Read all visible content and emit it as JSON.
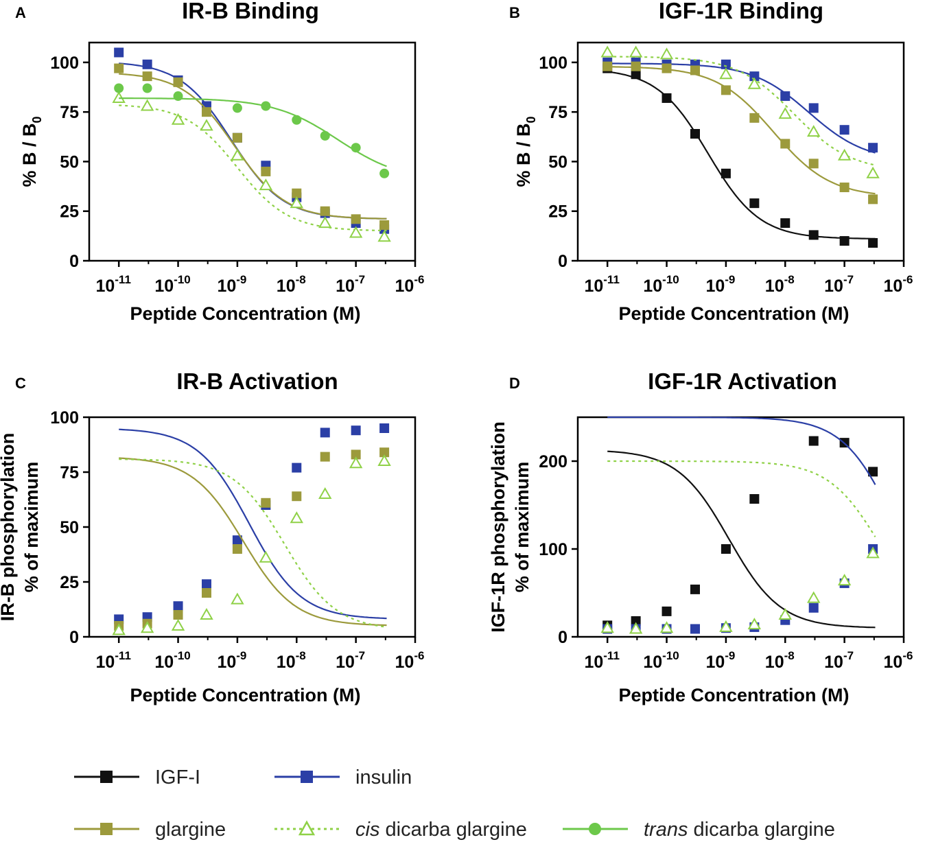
{
  "legend": [
    {
      "name": "IGF-I",
      "prefix": "",
      "suffix": "IGF-I",
      "color": "#111111",
      "marker": "square",
      "dash": false
    },
    {
      "name": "insulin",
      "prefix": "",
      "suffix": "insulin",
      "color": "#2b3fa6",
      "marker": "square",
      "dash": false
    },
    {
      "name": "glargine",
      "prefix": "",
      "suffix": "glargine",
      "color": "#9c9a3c",
      "marker": "square",
      "dash": false
    },
    {
      "name": "cis dicarba glargine",
      "prefix": "cis",
      "suffix": " dicarba glargine",
      "color": "#8fd147",
      "marker": "triangle-open",
      "dash": true
    },
    {
      "name": "trans dicarba glargine",
      "prefix": "trans",
      "suffix": " dicarba glargine",
      "color": "#6cc84a",
      "marker": "circle",
      "dash": false
    }
  ],
  "colors": {
    "IGF-I": "#111111",
    "insulin": "#2b3fa6",
    "glargine": "#9c9a3c",
    "cis dicarba glargine": "#8fd147",
    "trans dicarba glargine": "#6cc84a"
  },
  "chart_data": [
    {
      "panel": "A",
      "type": "scatter",
      "title": "IR-B Binding",
      "xlabel": "Peptide Concentration (M)",
      "ylabel": "% B / B",
      "ylabel_sub": "0",
      "xscale": "log",
      "xlim_exp": [
        -11.5,
        -6
      ],
      "x_tick_exponents": [
        "-11",
        "-10",
        "-9",
        "-8",
        "-7",
        "-6"
      ],
      "ylim": [
        0,
        110
      ],
      "y_ticks": [
        0,
        25,
        50,
        75,
        100
      ],
      "series": [
        {
          "name": "insulin",
          "x_exp": [
            -11,
            -10.52,
            -10,
            -9.52,
            -9,
            -8.52,
            -8,
            -7.52,
            -7,
            -6.52
          ],
          "values": [
            105,
            99,
            91,
            78,
            62,
            48,
            32,
            24,
            19,
            16
          ],
          "fit": {
            "bottom": 21,
            "top": 100.5,
            "logEC50": -9.1,
            "hill": 1.0
          }
        },
        {
          "name": "glargine",
          "x_exp": [
            -11,
            -10.52,
            -10,
            -9.52,
            -9,
            -8.52,
            -8,
            -7.52,
            -7,
            -6.52
          ],
          "values": [
            97,
            93,
            90,
            75,
            62,
            45,
            34,
            25,
            21,
            18
          ],
          "fit": {
            "bottom": 21,
            "top": 95,
            "logEC50": -9.05,
            "hill": 1.0
          }
        },
        {
          "name": "cis dicarba glargine",
          "x_exp": [
            -11,
            -10.52,
            -10,
            -9.52,
            -9,
            -8.52,
            -8,
            -7.52,
            -7,
            -6.52
          ],
          "values": [
            82,
            78,
            71,
            68,
            53,
            38,
            29,
            19,
            14,
            12
          ],
          "fit": {
            "bottom": 15,
            "top": 79,
            "logEC50": -9.0,
            "hill": 1.0
          }
        },
        {
          "name": "trans dicarba glargine",
          "x_exp": [
            -11,
            -10.52,
            -10,
            -9,
            -8.52,
            -8,
            -7.52,
            -7,
            -6.52
          ],
          "values": [
            87,
            87,
            83,
            77,
            78,
            71,
            63,
            57,
            44
          ],
          "fit": {
            "bottom": 40,
            "top": 82,
            "logEC50": -7.3,
            "hill": 0.8
          }
        }
      ]
    },
    {
      "panel": "B",
      "type": "scatter",
      "title": "IGF-1R Binding",
      "xlabel": "Peptide Concentration (M)",
      "ylabel": "% B / B",
      "ylabel_sub": "0",
      "xscale": "log",
      "xlim_exp": [
        -11.5,
        -6
      ],
      "x_tick_exponents": [
        "-11",
        "-10",
        "-9",
        "-8",
        "-7",
        "-6"
      ],
      "ylim": [
        0,
        110
      ],
      "y_ticks": [
        0,
        25,
        50,
        75,
        100
      ],
      "series": [
        {
          "name": "IGF-I",
          "x_exp": [
            -11,
            -10.52,
            -10,
            -9.52,
            -9,
            -8.52,
            -8,
            -7.52,
            -7,
            -6.52
          ],
          "values": [
            97,
            94,
            82,
            64,
            44,
            29,
            19,
            13,
            10,
            9
          ],
          "fit": {
            "bottom": 11,
            "top": 97,
            "logEC50": -9.3,
            "hill": 1.0
          }
        },
        {
          "name": "insulin",
          "x_exp": [
            -11,
            -10.52,
            -10,
            -9.52,
            -9,
            -8.52,
            -8,
            -7.52,
            -7,
            -6.52
          ],
          "values": [
            100,
            100,
            99,
            99,
            99,
            93,
            83,
            77,
            66,
            57
          ],
          "fit": {
            "bottom": 50,
            "top": 99.5,
            "logEC50": -7.6,
            "hill": 0.9
          }
        },
        {
          "name": "glargine",
          "x_exp": [
            -11,
            -10.52,
            -10,
            -9.52,
            -9,
            -8.52,
            -8,
            -7.52,
            -7,
            -6.52
          ],
          "values": [
            98,
            98,
            97,
            96,
            86,
            72,
            59,
            49,
            37,
            31
          ],
          "fit": {
            "bottom": 32,
            "top": 98,
            "logEC50": -8.2,
            "hill": 0.9
          }
        },
        {
          "name": "cis dicarba glargine",
          "x_exp": [
            -11,
            -10.52,
            -10,
            -9,
            -8.52,
            -8,
            -7.52,
            -7,
            -6.52
          ],
          "values": [
            105,
            105,
            104,
            94,
            89,
            74,
            65,
            53,
            44
          ],
          "fit": {
            "bottom": 45,
            "top": 103,
            "logEC50": -7.85,
            "hill": 0.9
          }
        }
      ]
    },
    {
      "panel": "C",
      "type": "scatter",
      "title": "IR-B Activation",
      "xlabel": "Peptide Concentration (M)",
      "ylabel": "IR-B phosphorylation",
      "ylabel2": "% of maximum",
      "xscale": "log",
      "xlim_exp": [
        -11.5,
        -6
      ],
      "x_tick_exponents": [
        "-11",
        "-10",
        "-9",
        "-8",
        "-7",
        "-6"
      ],
      "ylim": [
        0,
        100
      ],
      "y_ticks": [
        0,
        25,
        50,
        75,
        100
      ],
      "series": [
        {
          "name": "insulin",
          "x_exp": [
            -11,
            -10.52,
            -10,
            -9.52,
            -9,
            -8.52,
            -8,
            -7.52,
            -7,
            -6.52
          ],
          "values": [
            8,
            9,
            14,
            24,
            44,
            60,
            77,
            93,
            94,
            95
          ],
          "fit": {
            "bottom": 8,
            "top": 95,
            "logEC50": -8.8,
            "hill": 1.0
          }
        },
        {
          "name": "glargine",
          "x_exp": [
            -11,
            -10.52,
            -10,
            -9.52,
            -9,
            -8.52,
            -8,
            -7.52,
            -7,
            -6.52
          ],
          "values": [
            5,
            6,
            10,
            20,
            40,
            61,
            64,
            82,
            83,
            84
          ],
          "fit": {
            "bottom": 5,
            "top": 82,
            "logEC50": -8.9,
            "hill": 1.0
          }
        },
        {
          "name": "cis dicarba glargine",
          "x_exp": [
            -11,
            -10.52,
            -10,
            -9.52,
            -9,
            -8.52,
            -8,
            -7.52,
            -7,
            -6.52
          ],
          "values": [
            3,
            4,
            5,
            10,
            17,
            36,
            54,
            65,
            79,
            80
          ],
          "fit": {
            "bottom": 3,
            "top": 81,
            "logEC50": -8.2,
            "hill": 1.0
          }
        }
      ]
    },
    {
      "panel": "D",
      "type": "scatter",
      "title": "IGF-1R Activation",
      "xlabel": "Peptide Concentration (M)",
      "ylabel": "IGF-1R phosphorylation",
      "ylabel2": "% of maximum",
      "xscale": "log",
      "xlim_exp": [
        -11.5,
        -6
      ],
      "x_tick_exponents": [
        "-11",
        "-10",
        "-9",
        "-8",
        "-7",
        "-6"
      ],
      "ylim": [
        0,
        250
      ],
      "y_ticks": [
        0,
        100,
        200
      ],
      "series": [
        {
          "name": "IGF-I",
          "x_exp": [
            -11,
            -10.52,
            -10,
            -9.52,
            -9,
            -8.52,
            -7.52,
            -7,
            -6.52
          ],
          "values": [
            13,
            18,
            29,
            54,
            100,
            157,
            223,
            221,
            188
          ],
          "fit": {
            "bottom": 10,
            "top": 213,
            "logEC50": -8.95,
            "hill": 1.0
          }
        },
        {
          "name": "insulin",
          "x_exp": [
            -11,
            -10.52,
            -10,
            -9.52,
            -9,
            -8.52,
            -8,
            -7.52,
            -7,
            -6.52
          ],
          "values": [
            9,
            9,
            9,
            9,
            10,
            11,
            19,
            33,
            61,
            100
          ],
          "fit": {
            "bottom": 9,
            "top": 250,
            "logEC50": -6.15,
            "hill": 1.0
          }
        },
        {
          "name": "cis dicarba glargine",
          "x_exp": [
            -11,
            -10.52,
            -10,
            -9,
            -8.52,
            -8,
            -7.52,
            -7,
            -6.52
          ],
          "values": [
            10,
            9,
            10,
            11,
            14,
            25,
            44,
            64,
            95
          ],
          "fit": {
            "bottom": 10,
            "top": 200,
            "logEC50": -6.4,
            "hill": 1.0
          }
        }
      ]
    }
  ]
}
